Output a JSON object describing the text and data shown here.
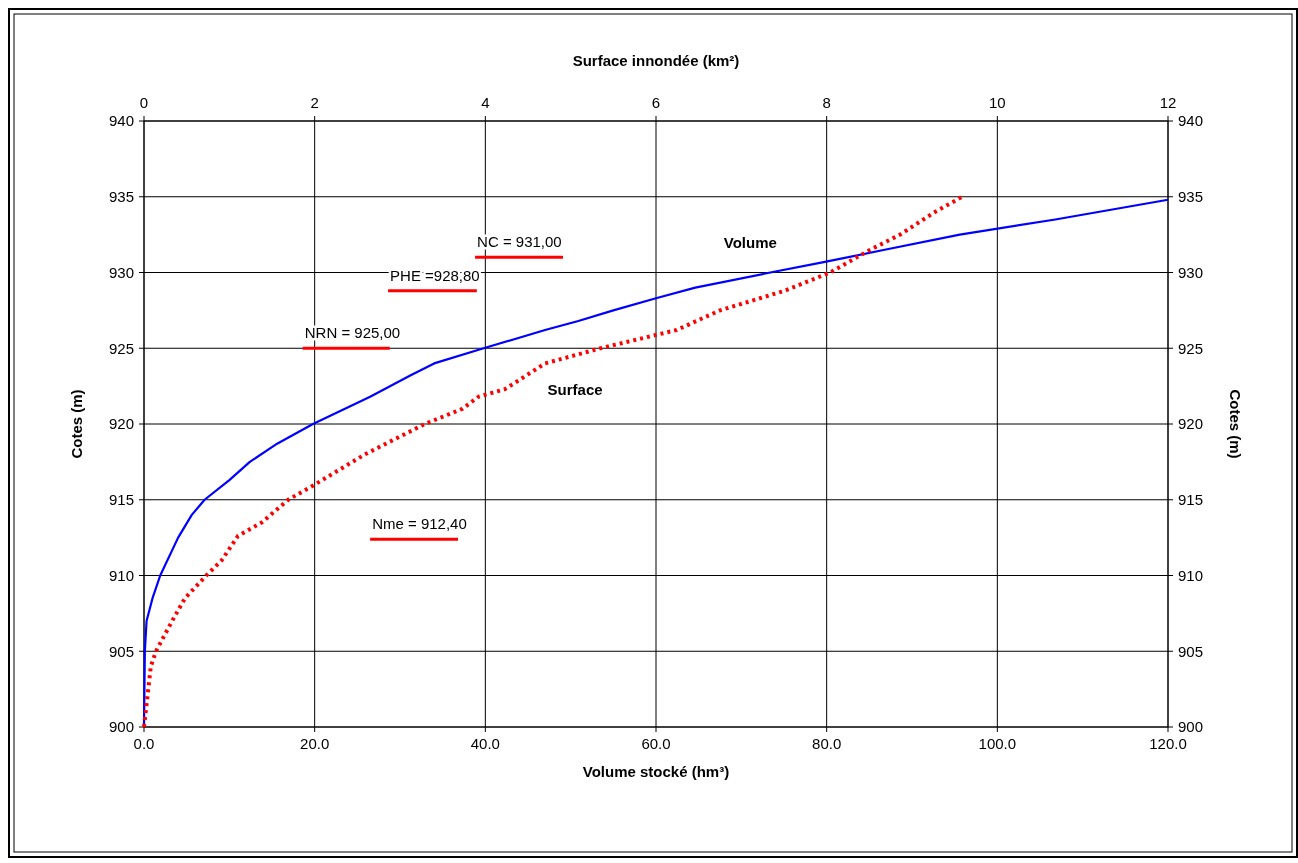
{
  "chart_data": {
    "type": "line",
    "xlabel": "Volume stocké (hm³)",
    "x2label": "Surface innondée (km²)",
    "ylabel": "Cotes (m)",
    "y2label": "Cotes (m)",
    "xlim": [
      0,
      120
    ],
    "xticks": [
      {
        "value": 0,
        "label": "0.0"
      },
      {
        "value": 20,
        "label": "20.0"
      },
      {
        "value": 40,
        "label": "40.0"
      },
      {
        "value": 60,
        "label": "60.0"
      },
      {
        "value": 80,
        "label": "80.0"
      },
      {
        "value": 100,
        "label": "100.0"
      },
      {
        "value": 120,
        "label": "120.0"
      }
    ],
    "x2lim": [
      0,
      12
    ],
    "x2ticks": [
      0,
      2,
      4,
      6,
      8,
      10,
      12
    ],
    "ylim": [
      900,
      940
    ],
    "yticks": [
      900,
      905,
      910,
      915,
      920,
      925,
      930,
      935,
      940
    ],
    "y2lim": [
      900,
      940
    ],
    "y2ticks": [
      900,
      905,
      910,
      915,
      920,
      925,
      930,
      935,
      940
    ],
    "grid": true,
    "marker": "none",
    "series": [
      {
        "name": "Volume",
        "color": "#0000ff",
        "line_style": "solid",
        "x": [
          0,
          0.1,
          0.3,
          1,
          1.9,
          4,
          5.6,
          7.1,
          10,
          12.4,
          15.6,
          19.8,
          26.5,
          31.2,
          34,
          39.8,
          47,
          50.9,
          55,
          60,
          64.6,
          73.4,
          79.8,
          86.8,
          95.6,
          106.8,
          120
        ],
        "values": [
          900,
          905,
          907,
          908.5,
          910,
          912.5,
          914,
          915,
          916.3,
          917.5,
          918.7,
          920,
          921.8,
          923.2,
          924,
          925,
          926.2,
          926.8,
          927.5,
          928.3,
          929,
          930,
          930.7,
          931.5,
          932.5,
          933.5,
          934.8
        ]
      },
      {
        "name": "Surface",
        "color": "#ff0000",
        "line_style": "dotted",
        "axis": "x2",
        "x": [
          0,
          0.04,
          0.08,
          0.14,
          0.33,
          0.48,
          0.73,
          0.91,
          1.1,
          1.38,
          1.69,
          2,
          2.59,
          3.29,
          3.73,
          3.92,
          4.23,
          4.7,
          5.35,
          6.24,
          6.75,
          7.51,
          8.04,
          8.51,
          8.86,
          9.27,
          9.59
        ],
        "values": [
          900,
          902,
          904,
          905,
          907,
          908.5,
          910,
          911,
          912.6,
          913.5,
          915,
          916,
          918,
          920,
          921,
          921.8,
          922.3,
          924,
          925,
          926.2,
          927.5,
          928.8,
          930,
          931.5,
          932.5,
          934,
          935
        ]
      },
      {
        "name": "NC = 931,00",
        "color": "#ff0000",
        "line_style": "solid",
        "x": [
          38.8,
          49.1
        ],
        "values": [
          931,
          931
        ]
      },
      {
        "name": "PHE =928,80",
        "color": "#ff0000",
        "line_style": "solid",
        "x": [
          28.6,
          39
        ],
        "values": [
          928.8,
          928.8
        ]
      },
      {
        "name": "NRN = 925,00",
        "color": "#ff0000",
        "line_style": "solid",
        "x": [
          18.6,
          28.8
        ],
        "values": [
          925,
          925
        ]
      },
      {
        "name": "Nme = 912,40",
        "color": "#ff0000",
        "line_style": "solid",
        "x": [
          26.5,
          36.8
        ],
        "values": [
          912.4,
          912.4
        ]
      }
    ]
  }
}
